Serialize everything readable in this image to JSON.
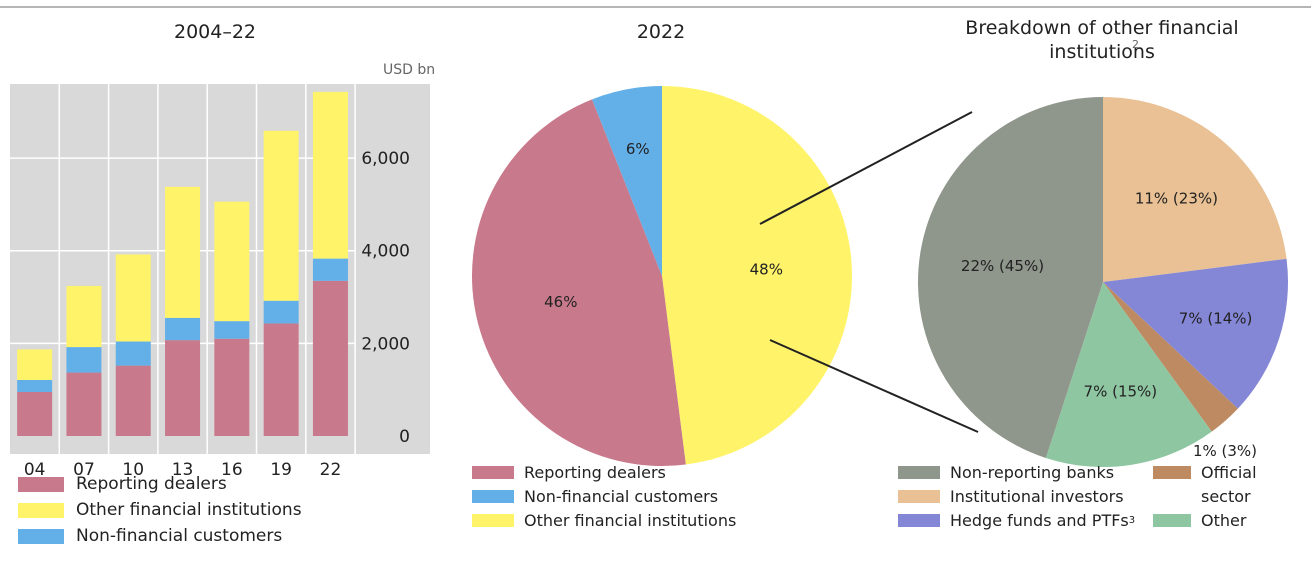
{
  "colors": {
    "reporting_dealers": "#c8798b",
    "other_financial": "#fff36a",
    "non_financial": "#63b0e8",
    "non_reporting_banks": "#8f968c",
    "institutional_investors": "#e9c194",
    "hedge_funds": "#8486d6",
    "official_sector": "#bd8a62",
    "other": "#8fc6a2",
    "panel_bg": "#d9d9d9"
  },
  "chart_data": [
    {
      "type": "bar",
      "title": "2004–22",
      "unit_label": "USD bn",
      "categories": [
        "04",
        "07",
        "10",
        "13",
        "16",
        "19",
        "22"
      ],
      "series": [
        {
          "name": "Reporting dealers",
          "values": [
            950,
            1370,
            1520,
            2070,
            2100,
            2430,
            3350
          ]
        },
        {
          "name": "Non-financial customers",
          "values": [
            260,
            550,
            520,
            480,
            380,
            490,
            480
          ]
        },
        {
          "name": "Other financial institutions",
          "values": [
            660,
            1320,
            1880,
            2830,
            2580,
            3670,
            3600
          ]
        }
      ],
      "ylim": [
        0,
        7600
      ],
      "yticks": [
        "0",
        "2,000",
        "4,000",
        "6,000"
      ],
      "ytick_values": [
        0,
        2000,
        4000,
        6000
      ],
      "legend": [
        "Reporting dealers",
        "Other financial institutions",
        "Non-financial customers"
      ]
    },
    {
      "type": "pie",
      "title": "2022",
      "slices": [
        {
          "name": "Other financial institutions",
          "value": 48,
          "label": "48%"
        },
        {
          "name": "Reporting dealers",
          "value": 46,
          "label": "46%"
        },
        {
          "name": "Non-financial customers",
          "value": 6,
          "label": "6%"
        }
      ],
      "legend": [
        "Reporting dealers",
        "Non-financial customers",
        "Other financial institutions"
      ]
    },
    {
      "type": "pie",
      "title": "Breakdown of other financial institutions",
      "title_sup": "2",
      "slices": [
        {
          "name": "Institutional investors",
          "value": 23,
          "label": "11% (23%)"
        },
        {
          "name": "Hedge funds and PTFs",
          "value": 14,
          "label": "7% (14%)"
        },
        {
          "name": "Official sector",
          "value": 3,
          "label": "1% (3%)"
        },
        {
          "name": "Other",
          "value": 15,
          "label": "7% (15%)"
        },
        {
          "name": "Non-reporting banks",
          "value": 45,
          "label": "22% (45%)"
        }
      ],
      "legend": {
        "non_reporting_banks": "Non-reporting banks",
        "institutional_investors": "Institutional investors",
        "hedge_funds": "Hedge funds and PTFs",
        "hedge_funds_sup": "3",
        "official_sector_line1": "Official",
        "official_sector_line2": "sector",
        "other": "Other"
      }
    }
  ]
}
